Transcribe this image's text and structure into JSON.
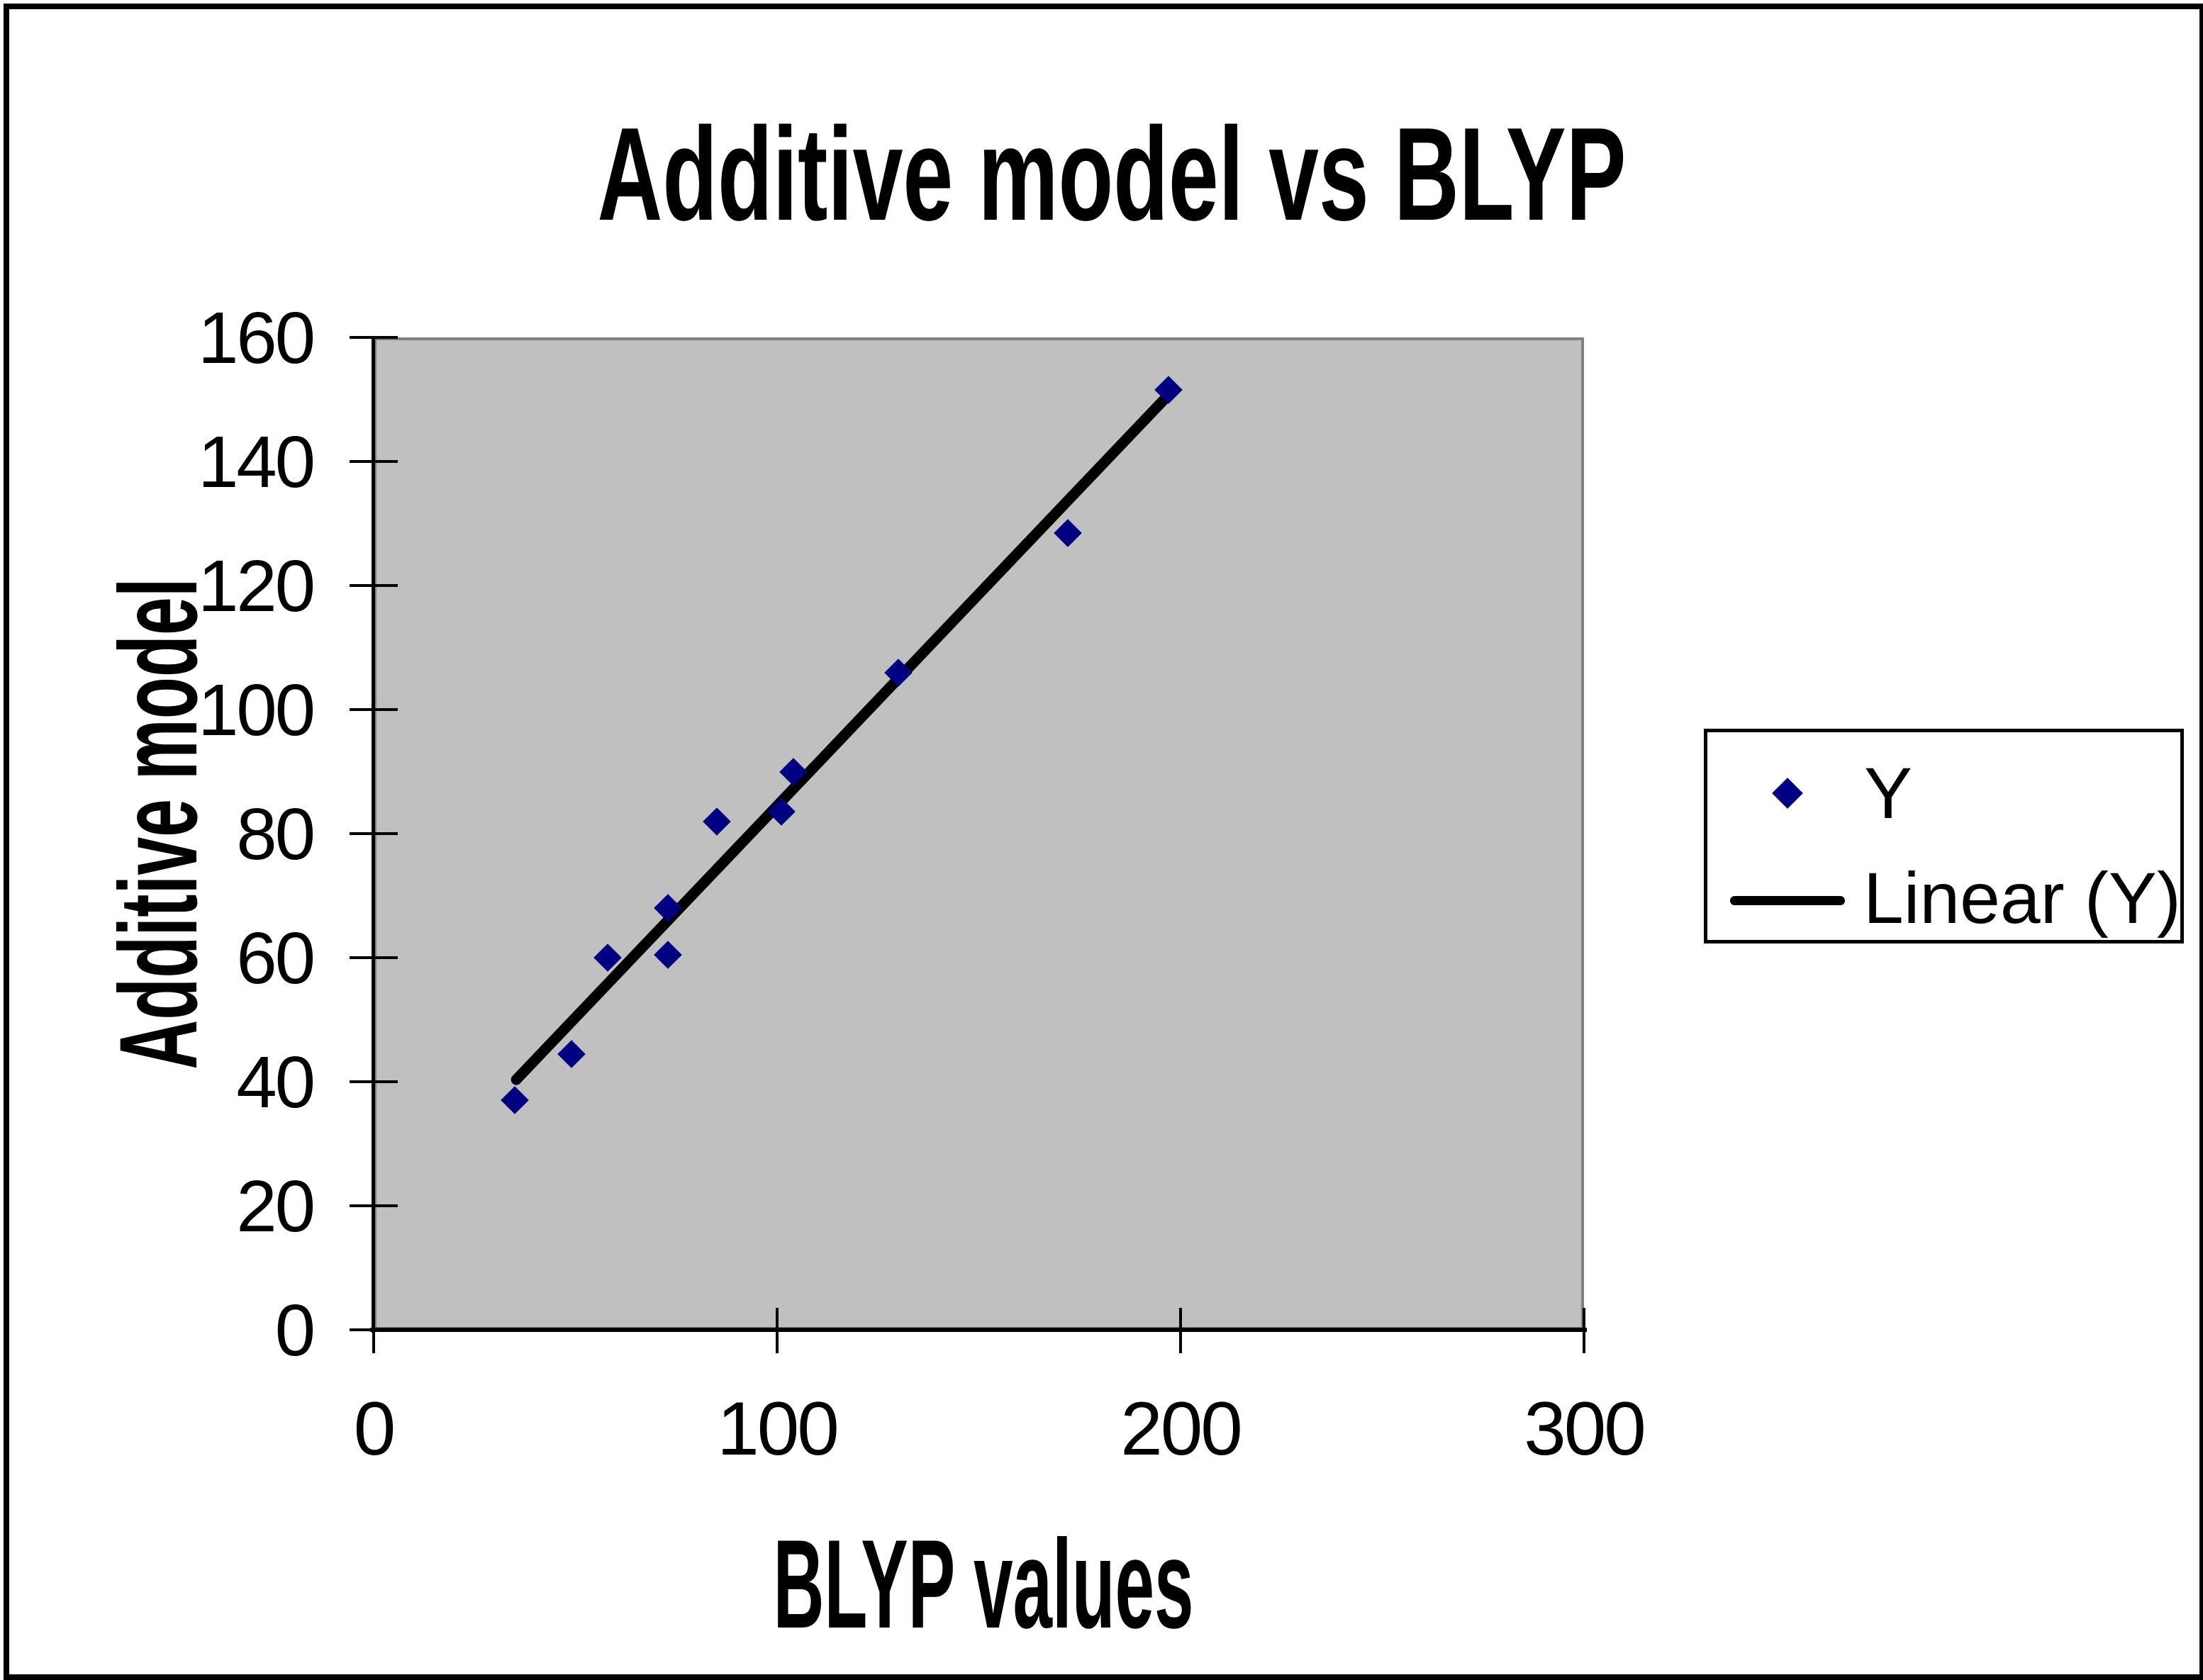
{
  "chart_data": {
    "type": "scatter",
    "title": "Additive model vs BLYP",
    "xlabel": "BLYP values",
    "ylabel": "Additive model",
    "x_axis": {
      "min": 0,
      "max": 300,
      "ticks": [
        0,
        100,
        200,
        300
      ]
    },
    "y_axis": {
      "min": 0,
      "max": 160,
      "ticks": [
        0,
        20,
        40,
        60,
        80,
        100,
        120,
        140,
        160
      ]
    },
    "grid": false,
    "plot_background": "#C0C0C0",
    "legend_position": "right",
    "series": [
      {
        "name": "Y",
        "type": "scatter",
        "marker": "diamond",
        "color": "#000080",
        "points": [
          [
            35,
            37
          ],
          [
            49,
            44.5
          ],
          [
            58,
            60
          ],
          [
            73,
            60.5
          ],
          [
            73,
            68
          ],
          [
            85,
            82
          ],
          [
            101,
            83.5
          ],
          [
            104,
            90
          ],
          [
            130,
            106
          ],
          [
            172,
            128.5
          ],
          [
            197,
            151.5
          ]
        ]
      },
      {
        "name": "Linear (Y)",
        "type": "line",
        "color": "#000000",
        "points": [
          [
            34.4,
            39.7
          ],
          [
            196.8,
            150.6
          ]
        ]
      }
    ]
  },
  "colors": {
    "marker": "#000080",
    "trendline": "#000000",
    "plot_background": "#C0C0C0",
    "plot_border": "#818181",
    "text": "#000000",
    "page_background": "#FFFFFF"
  }
}
